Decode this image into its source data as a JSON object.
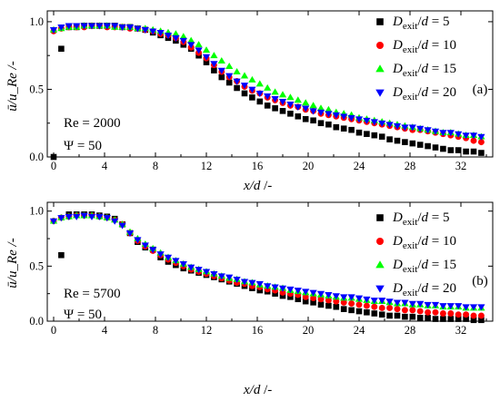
{
  "figure": {
    "x_label_left": "x/d",
    "x_label_right": " /-",
    "y_label": "ū/u_Re /-"
  },
  "chart_data": [
    {
      "type": "scatter",
      "panel_label": "(a)",
      "annotation_re": "Re = 2000",
      "annotation_psi": "Ψ = 50",
      "xlabel": "x/d /-",
      "ylabel": "ū/u_Re /-",
      "xlim": [
        -0.5,
        34.5
      ],
      "ylim": [
        0,
        1.08
      ],
      "xticks": [
        "0",
        "4",
        "8",
        "12",
        "16",
        "20",
        "24",
        "28",
        "32"
      ],
      "yticks": [
        "0.0",
        "0.5",
        "1.0"
      ],
      "legend_position": "top-right",
      "series": [
        {
          "name": "D_exit/d = 5",
          "marker": "square",
          "color": "#000000",
          "x": [
            0,
            0.6,
            1.2,
            1.8,
            2.4,
            3,
            3.6,
            4.2,
            4.8,
            5.4,
            6,
            6.6,
            7.2,
            7.8,
            8.4,
            9,
            9.6,
            10.2,
            10.8,
            11.4,
            12,
            12.6,
            13.2,
            13.8,
            14.4,
            15,
            15.6,
            16.2,
            16.8,
            17.4,
            18,
            18.6,
            19.2,
            19.8,
            20.4,
            21,
            21.6,
            22.2,
            22.8,
            23.4,
            24,
            24.6,
            25.2,
            25.8,
            26.4,
            27,
            27.6,
            28.2,
            28.8,
            29.4,
            30,
            30.6,
            31.2,
            31.8,
            32.4,
            33,
            33.6
          ],
          "y": [
            0.0,
            0.8,
            0.96,
            0.96,
            0.97,
            0.97,
            0.97,
            0.97,
            0.97,
            0.96,
            0.96,
            0.95,
            0.94,
            0.92,
            0.9,
            0.88,
            0.86,
            0.83,
            0.8,
            0.75,
            0.7,
            0.64,
            0.59,
            0.55,
            0.51,
            0.47,
            0.44,
            0.41,
            0.38,
            0.36,
            0.34,
            0.32,
            0.3,
            0.28,
            0.27,
            0.25,
            0.24,
            0.22,
            0.21,
            0.2,
            0.18,
            0.17,
            0.16,
            0.15,
            0.13,
            0.12,
            0.11,
            0.1,
            0.09,
            0.08,
            0.07,
            0.06,
            0.05,
            0.05,
            0.04,
            0.04,
            0.03
          ]
        },
        {
          "name": "D_exit/d = 10",
          "marker": "circle",
          "color": "#ff0000",
          "x": [
            0,
            0.6,
            1.2,
            1.8,
            2.4,
            3,
            3.6,
            4.2,
            4.8,
            5.4,
            6,
            6.6,
            7.2,
            7.8,
            8.4,
            9,
            9.6,
            10.2,
            10.8,
            11.4,
            12,
            12.6,
            13.2,
            13.8,
            14.4,
            15,
            15.6,
            16.2,
            16.8,
            17.4,
            18,
            18.6,
            19.2,
            19.8,
            20.4,
            21,
            21.6,
            22.2,
            22.8,
            23.4,
            24,
            24.6,
            25.2,
            25.8,
            26.4,
            27,
            27.6,
            28.2,
            28.8,
            29.4,
            30,
            30.6,
            31.2,
            31.8,
            32.4,
            33,
            33.6
          ],
          "y": [
            0.93,
            0.95,
            0.96,
            0.96,
            0.96,
            0.97,
            0.97,
            0.96,
            0.96,
            0.96,
            0.95,
            0.95,
            0.94,
            0.93,
            0.91,
            0.9,
            0.88,
            0.85,
            0.81,
            0.77,
            0.73,
            0.68,
            0.63,
            0.59,
            0.56,
            0.52,
            0.49,
            0.47,
            0.44,
            0.42,
            0.4,
            0.38,
            0.37,
            0.35,
            0.34,
            0.32,
            0.31,
            0.3,
            0.29,
            0.28,
            0.27,
            0.26,
            0.25,
            0.24,
            0.23,
            0.22,
            0.21,
            0.2,
            0.2,
            0.19,
            0.18,
            0.17,
            0.16,
            0.15,
            0.14,
            0.12,
            0.11
          ]
        },
        {
          "name": "D_exit/d = 15",
          "marker": "triangle-up",
          "color": "#00ff00",
          "x": [
            0,
            0.6,
            1.2,
            1.8,
            2.4,
            3,
            3.6,
            4.2,
            4.8,
            5.4,
            6,
            6.6,
            7.2,
            7.8,
            8.4,
            9,
            9.6,
            10.2,
            10.8,
            11.4,
            12,
            12.6,
            13.2,
            13.8,
            14.4,
            15,
            15.6,
            16.2,
            16.8,
            17.4,
            18,
            18.6,
            19.2,
            19.8,
            20.4,
            21,
            21.6,
            22.2,
            22.8,
            23.4,
            24,
            24.6,
            25.2,
            25.8,
            26.4,
            27,
            27.6,
            28.2,
            28.8,
            29.4,
            30,
            30.6,
            31.2,
            31.8,
            32.4,
            33,
            33.6
          ],
          "y": [
            0.94,
            0.95,
            0.96,
            0.96,
            0.97,
            0.97,
            0.97,
            0.97,
            0.96,
            0.96,
            0.96,
            0.95,
            0.95,
            0.94,
            0.93,
            0.92,
            0.91,
            0.89,
            0.86,
            0.83,
            0.79,
            0.75,
            0.71,
            0.67,
            0.63,
            0.6,
            0.57,
            0.54,
            0.51,
            0.48,
            0.46,
            0.44,
            0.42,
            0.4,
            0.38,
            0.36,
            0.35,
            0.33,
            0.32,
            0.31,
            0.29,
            0.28,
            0.27,
            0.26,
            0.25,
            0.24,
            0.23,
            0.22,
            0.21,
            0.2,
            0.19,
            0.18,
            0.18,
            0.17,
            0.16,
            0.16,
            0.15
          ]
        },
        {
          "name": "D_exit/d = 20",
          "marker": "triangle-down",
          "color": "#0000ff",
          "x": [
            0,
            0.6,
            1.2,
            1.8,
            2.4,
            3,
            3.6,
            4.2,
            4.8,
            5.4,
            6,
            6.6,
            7.2,
            7.8,
            8.4,
            9,
            9.6,
            10.2,
            10.8,
            11.4,
            12,
            12.6,
            13.2,
            13.8,
            14.4,
            15,
            15.6,
            16.2,
            16.8,
            17.4,
            18,
            18.6,
            19.2,
            19.8,
            20.4,
            21,
            21.6,
            22.2,
            22.8,
            23.4,
            24,
            24.6,
            25.2,
            25.8,
            26.4,
            27,
            27.6,
            28.2,
            28.8,
            29.4,
            30,
            30.6,
            31.2,
            31.8,
            32.4,
            33,
            33.6
          ],
          "y": [
            0.94,
            0.96,
            0.97,
            0.97,
            0.97,
            0.97,
            0.97,
            0.97,
            0.97,
            0.96,
            0.96,
            0.95,
            0.94,
            0.93,
            0.92,
            0.9,
            0.88,
            0.86,
            0.83,
            0.79,
            0.74,
            0.69,
            0.64,
            0.6,
            0.56,
            0.53,
            0.5,
            0.47,
            0.45,
            0.43,
            0.41,
            0.39,
            0.37,
            0.36,
            0.34,
            0.33,
            0.32,
            0.31,
            0.3,
            0.29,
            0.28,
            0.27,
            0.26,
            0.25,
            0.24,
            0.23,
            0.22,
            0.22,
            0.21,
            0.2,
            0.19,
            0.18,
            0.18,
            0.17,
            0.16,
            0.16,
            0.15
          ]
        }
      ]
    },
    {
      "type": "scatter",
      "panel_label": "(b)",
      "annotation_re": "Re = 5700",
      "annotation_psi": "Ψ = 50",
      "xlabel": "x/d /-",
      "ylabel": "ū/u_Re /-",
      "xlim": [
        -0.5,
        34.5
      ],
      "ylim": [
        0,
        1.08
      ],
      "xticks": [
        "0",
        "4",
        "8",
        "12",
        "16",
        "20",
        "24",
        "28",
        "32"
      ],
      "yticks": [
        "0.0",
        "0.5",
        "1.0"
      ],
      "legend_position": "top-right",
      "series": [
        {
          "name": "D_exit/d = 5",
          "marker": "square",
          "color": "#000000",
          "x": [
            0.6,
            1.2,
            1.8,
            2.4,
            3,
            3.6,
            4.2,
            4.8,
            5.4,
            6,
            6.6,
            7.2,
            7.8,
            8.4,
            9,
            9.6,
            10.2,
            10.8,
            11.4,
            12,
            12.6,
            13.2,
            13.8,
            14.4,
            15,
            15.6,
            16.2,
            16.8,
            17.4,
            18,
            18.6,
            19.2,
            19.8,
            20.4,
            21,
            21.6,
            22.2,
            22.8,
            23.4,
            24,
            24.6,
            25.2,
            25.8,
            26.4,
            27,
            27.6,
            28.2,
            28.8,
            29.4,
            30,
            30.6,
            31.2,
            31.8,
            32.4,
            33,
            33.6
          ],
          "y": [
            0.6,
            0.97,
            0.97,
            0.97,
            0.97,
            0.96,
            0.95,
            0.93,
            0.88,
            0.8,
            0.72,
            0.67,
            0.65,
            0.58,
            0.54,
            0.51,
            0.48,
            0.46,
            0.44,
            0.42,
            0.4,
            0.38,
            0.36,
            0.34,
            0.32,
            0.3,
            0.28,
            0.27,
            0.25,
            0.23,
            0.22,
            0.2,
            0.18,
            0.17,
            0.15,
            0.14,
            0.13,
            0.11,
            0.1,
            0.09,
            0.08,
            0.07,
            0.06,
            0.05,
            0.05,
            0.04,
            0.04,
            0.03,
            0.03,
            0.02,
            0.02,
            0.02,
            0.02,
            0.02,
            0.01,
            0.01
          ]
        },
        {
          "name": "D_exit/d = 10",
          "marker": "circle",
          "color": "#ff0000",
          "x": [
            0,
            0.6,
            1.2,
            1.8,
            2.4,
            3,
            3.6,
            4.2,
            4.8,
            5.4,
            6,
            6.6,
            7.2,
            7.8,
            8.4,
            9,
            9.6,
            10.2,
            10.8,
            11.4,
            12,
            12.6,
            13.2,
            13.8,
            14.4,
            15,
            15.6,
            16.2,
            16.8,
            17.4,
            18,
            18.6,
            19.2,
            19.8,
            20.4,
            21,
            21.6,
            22.2,
            22.8,
            23.4,
            24,
            24.6,
            25.2,
            25.8,
            26.4,
            27,
            27.6,
            28.2,
            28.8,
            29.4,
            30,
            30.6,
            31.2,
            31.8,
            32.4,
            33,
            33.6
          ],
          "y": [
            0.91,
            0.94,
            0.95,
            0.96,
            0.96,
            0.96,
            0.95,
            0.94,
            0.92,
            0.88,
            0.8,
            0.73,
            0.68,
            0.64,
            0.6,
            0.56,
            0.53,
            0.5,
            0.47,
            0.45,
            0.43,
            0.41,
            0.39,
            0.37,
            0.35,
            0.34,
            0.32,
            0.31,
            0.29,
            0.28,
            0.26,
            0.25,
            0.24,
            0.22,
            0.21,
            0.2,
            0.19,
            0.18,
            0.17,
            0.16,
            0.15,
            0.14,
            0.13,
            0.12,
            0.12,
            0.11,
            0.1,
            0.1,
            0.09,
            0.08,
            0.08,
            0.07,
            0.07,
            0.06,
            0.06,
            0.05,
            0.05
          ]
        },
        {
          "name": "D_exit/d = 15",
          "marker": "triangle-up",
          "color": "#00ff00",
          "x": [
            0,
            0.6,
            1.2,
            1.8,
            2.4,
            3,
            3.6,
            4.2,
            4.8,
            5.4,
            6,
            6.6,
            7.2,
            7.8,
            8.4,
            9,
            9.6,
            10.2,
            10.8,
            11.4,
            12,
            12.6,
            13.2,
            13.8,
            14.4,
            15,
            15.6,
            16.2,
            16.8,
            17.4,
            18,
            18.6,
            19.2,
            19.8,
            20.4,
            21,
            21.6,
            22.2,
            22.8,
            23.4,
            24,
            24.6,
            25.2,
            25.8,
            26.4,
            27,
            27.6,
            28.2,
            28.8,
            29.4,
            30,
            30.6,
            31.2,
            31.8,
            32.4,
            33,
            33.6
          ],
          "y": [
            0.91,
            0.94,
            0.95,
            0.96,
            0.96,
            0.96,
            0.95,
            0.94,
            0.92,
            0.88,
            0.81,
            0.75,
            0.7,
            0.66,
            0.62,
            0.58,
            0.55,
            0.52,
            0.49,
            0.47,
            0.45,
            0.43,
            0.41,
            0.39,
            0.38,
            0.36,
            0.35,
            0.33,
            0.32,
            0.31,
            0.3,
            0.28,
            0.27,
            0.26,
            0.25,
            0.24,
            0.23,
            0.22,
            0.21,
            0.21,
            0.2,
            0.19,
            0.18,
            0.18,
            0.17,
            0.16,
            0.16,
            0.15,
            0.15,
            0.14,
            0.14,
            0.13,
            0.13,
            0.13,
            0.12,
            0.12,
            0.12
          ]
        },
        {
          "name": "D_exit/d = 20",
          "marker": "triangle-down",
          "color": "#0000ff",
          "x": [
            0,
            0.6,
            1.2,
            1.8,
            2.4,
            3,
            3.6,
            4.2,
            4.8,
            5.4,
            6,
            6.6,
            7.2,
            7.8,
            8.4,
            9,
            9.6,
            10.2,
            10.8,
            11.4,
            12,
            12.6,
            13.2,
            13.8,
            14.4,
            15,
            15.6,
            16.2,
            16.8,
            17.4,
            18,
            18.6,
            19.2,
            19.8,
            20.4,
            21,
            21.6,
            22.2,
            22.8,
            23.4,
            24,
            24.6,
            25.2,
            25.8,
            26.4,
            27,
            27.6,
            28.2,
            28.8,
            29.4,
            30,
            30.6,
            31.2,
            31.8,
            32.4,
            33,
            33.6
          ],
          "y": [
            0.91,
            0.94,
            0.95,
            0.95,
            0.96,
            0.95,
            0.95,
            0.94,
            0.91,
            0.87,
            0.8,
            0.74,
            0.69,
            0.65,
            0.61,
            0.58,
            0.55,
            0.52,
            0.49,
            0.47,
            0.45,
            0.43,
            0.41,
            0.4,
            0.38,
            0.36,
            0.35,
            0.34,
            0.32,
            0.31,
            0.3,
            0.29,
            0.28,
            0.27,
            0.26,
            0.25,
            0.24,
            0.23,
            0.22,
            0.22,
            0.21,
            0.2,
            0.19,
            0.19,
            0.18,
            0.17,
            0.17,
            0.16,
            0.16,
            0.15,
            0.15,
            0.14,
            0.14,
            0.14,
            0.13,
            0.13,
            0.13
          ]
        }
      ]
    }
  ]
}
